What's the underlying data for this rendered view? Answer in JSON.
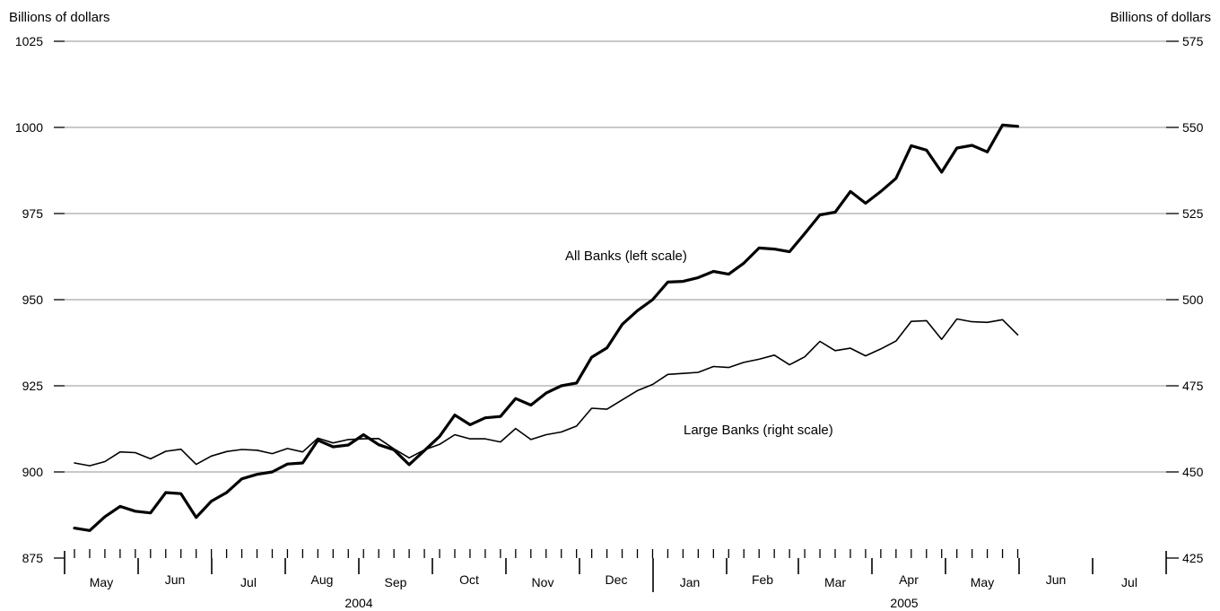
{
  "chart_data": {
    "type": "line",
    "title": "",
    "y_left": {
      "label": "Billions of dollars",
      "ticks": [
        875,
        900,
        925,
        950,
        975,
        1000,
        1025
      ],
      "ylim": [
        875,
        1025
      ]
    },
    "y_right": {
      "label": "Billions of dollars",
      "ticks": [
        425,
        450,
        475,
        500,
        525,
        550,
        575
      ],
      "ylim": [
        425,
        575
      ]
    },
    "months": [
      "May",
      "Jun",
      "Jul",
      "Aug",
      "Sep",
      "Oct",
      "Nov",
      "Dec",
      "Jan",
      "Feb",
      "Mar",
      "Apr",
      "May",
      "Jun",
      "Jul"
    ],
    "years": [
      "2004",
      "2005"
    ],
    "grid": true,
    "series": [
      {
        "name": "All Banks (left scale)",
        "axis": "left",
        "values": [
          883.7,
          883.0,
          887.0,
          890.0,
          888.6,
          888.1,
          894.0,
          893.7,
          886.8,
          891.5,
          894.0,
          898.0,
          899.3,
          900.0,
          902.3,
          902.6,
          909.2,
          907.3,
          907.8,
          910.8,
          907.9,
          906.4,
          902.1,
          906.2,
          910.3,
          916.5,
          913.7,
          915.7,
          916.1,
          921.3,
          919.4,
          922.9,
          925.0,
          925.8,
          933.3,
          936.0,
          942.8,
          946.8,
          950.0,
          955.1,
          955.3,
          956.4,
          958.2,
          957.4,
          960.6,
          965.0,
          964.7,
          963.9,
          969.2,
          974.6,
          975.4,
          981.4,
          978.0,
          981.4,
          985.2,
          994.7,
          993.4,
          987.0,
          994.0,
          994.8,
          992.9,
          1000.7,
          1000.3
        ]
      },
      {
        "name": "Large Banks (right scale)",
        "axis": "right",
        "values": [
          452.6,
          451.8,
          453.0,
          455.8,
          455.6,
          453.8,
          456.0,
          456.6,
          452.2,
          454.6,
          455.9,
          456.5,
          456.3,
          455.3,
          456.8,
          455.8,
          459.8,
          458.4,
          459.4,
          459.6,
          459.7,
          456.7,
          454.1,
          456.4,
          458.0,
          460.8,
          459.6,
          459.6,
          458.7,
          462.6,
          459.4,
          460.8,
          461.6,
          463.3,
          468.5,
          468.2,
          470.9,
          473.6,
          475.4,
          478.3,
          478.6,
          478.9,
          480.6,
          480.3,
          481.8,
          482.7,
          483.9,
          481.1,
          483.4,
          487.9,
          485.2,
          485.9,
          483.7,
          485.7,
          488.0,
          493.7,
          493.9,
          488.5,
          494.4,
          493.6,
          493.4,
          494.2,
          489.8
        ]
      }
    ]
  }
}
